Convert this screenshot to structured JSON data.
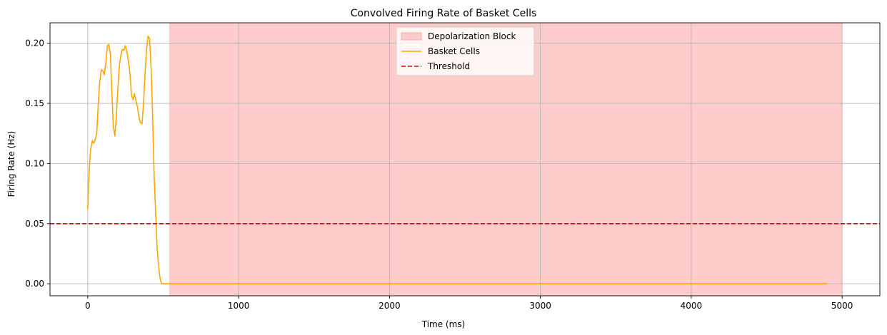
{
  "chart_data": {
    "type": "line",
    "title": "Convolved Firing Rate of Basket Cells",
    "xlabel": "Time (ms)",
    "ylabel": "Firing Rate (Hz)",
    "xlim": [
      -250,
      5250
    ],
    "ylim": [
      -0.01,
      0.217
    ],
    "x_ticks": [
      0,
      1000,
      2000,
      3000,
      4000,
      5000
    ],
    "x_tick_labels": [
      "0",
      "1000",
      "2000",
      "3000",
      "4000",
      "5000"
    ],
    "y_ticks": [
      0.0,
      0.05,
      0.1,
      0.15,
      0.2
    ],
    "y_tick_labels": [
      "0.00",
      "0.05",
      "0.10",
      "0.15",
      "0.20"
    ],
    "grid": true,
    "legend_position": "top-center",
    "shaded_region": {
      "name": "Depolarization Block",
      "x_start": 540,
      "x_end": 5000,
      "color": "#ffcccc"
    },
    "threshold": {
      "name": "Threshold",
      "y": 0.05,
      "color": "#dd0000"
    },
    "series": [
      {
        "name": "Basket Cells",
        "color": "#ffa500",
        "x": [
          0,
          10,
          20,
          30,
          40,
          50,
          60,
          70,
          80,
          90,
          100,
          110,
          120,
          130,
          140,
          150,
          160,
          170,
          180,
          190,
          200,
          210,
          220,
          230,
          240,
          250,
          260,
          270,
          280,
          290,
          300,
          310,
          320,
          330,
          340,
          350,
          360,
          370,
          380,
          390,
          400,
          410,
          420,
          430,
          440,
          450,
          460,
          470,
          480,
          490,
          500,
          510,
          520,
          530,
          540,
          550,
          560,
          570,
          580,
          600,
          700,
          1000,
          2000,
          3000,
          4000,
          4900
        ],
        "y": [
          0.062,
          0.095,
          0.112,
          0.119,
          0.117,
          0.12,
          0.125,
          0.15,
          0.168,
          0.178,
          0.177,
          0.174,
          0.184,
          0.198,
          0.199,
          0.191,
          0.16,
          0.131,
          0.123,
          0.14,
          0.163,
          0.182,
          0.19,
          0.195,
          0.194,
          0.198,
          0.193,
          0.185,
          0.175,
          0.157,
          0.153,
          0.158,
          0.152,
          0.147,
          0.138,
          0.134,
          0.133,
          0.15,
          0.175,
          0.195,
          0.206,
          0.204,
          0.18,
          0.14,
          0.09,
          0.06,
          0.03,
          0.015,
          0.004,
          0.0,
          0.0,
          0.0,
          0.0,
          0.0,
          0.0,
          0.0,
          0.0,
          0.0,
          0.0,
          0.0,
          0.0,
          0.0,
          0.0,
          0.0,
          0.0,
          0.0
        ]
      }
    ],
    "legend": [
      "Depolarization Block",
      "Basket Cells",
      "Threshold"
    ]
  }
}
